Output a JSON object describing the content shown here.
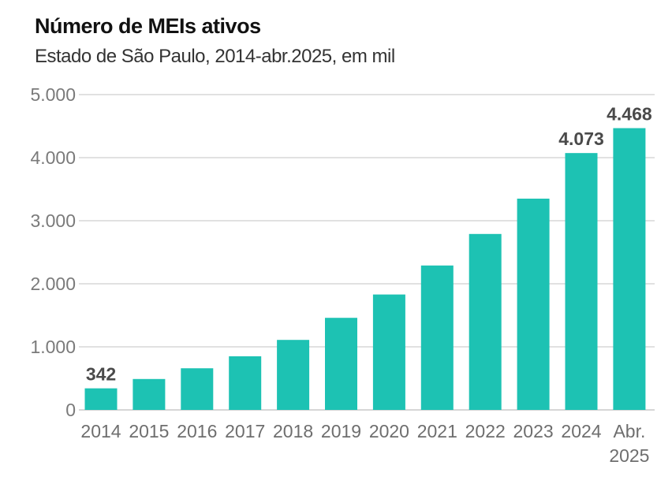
{
  "title": "Número de MEIs ativos",
  "subtitle": "Estado de São Paulo, 2014-abr.2025, em mil",
  "colors": {
    "bar": "#1dc2b3",
    "grid": "#cfcfcf"
  },
  "chart_data": {
    "type": "bar",
    "categories": [
      "2014",
      "2015",
      "2016",
      "2017",
      "2018",
      "2019",
      "2020",
      "2021",
      "2022",
      "2023",
      "2024",
      "Abr. 2025"
    ],
    "values": [
      342,
      490,
      660,
      850,
      1110,
      1460,
      1830,
      2290,
      2790,
      3350,
      4073,
      4468
    ],
    "data_labels": {
      "0": "342",
      "10": "4.073",
      "11": "4.468"
    },
    "yticks": [
      "0",
      "1.000",
      "2.000",
      "3.000",
      "4.000",
      "5.000"
    ],
    "ylim": [
      0,
      5000
    ],
    "grid": true
  }
}
